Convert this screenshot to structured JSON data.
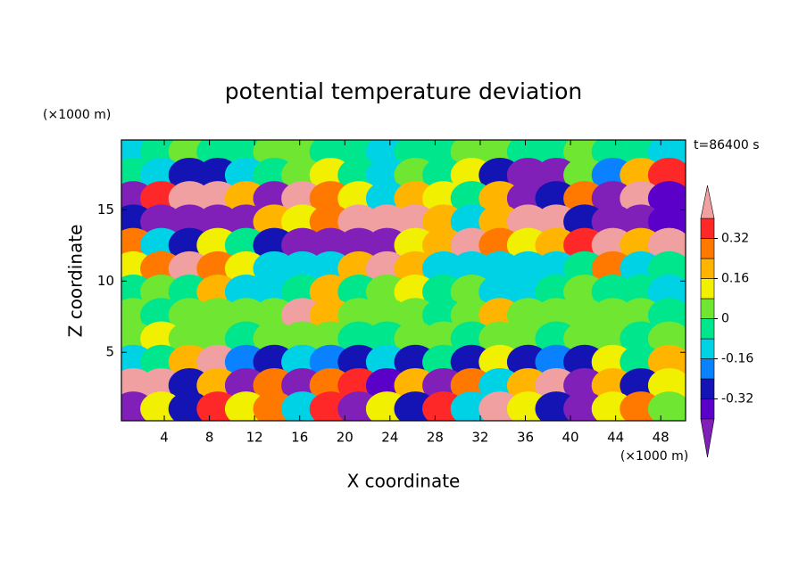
{
  "chart_data": {
    "type": "contour",
    "title": "potential temperature deviation",
    "x_label": "X coordinate",
    "y_label": "Z coordinate",
    "x_unit": "(×1000 m)",
    "y_unit": "(×1000 m)",
    "time_label": "t=86400 s",
    "xlim": [
      0.2,
      50.2
    ],
    "xticks": [
      4,
      8,
      12,
      16,
      20,
      24,
      28,
      32,
      36,
      40,
      44,
      48
    ],
    "ylim": [
      0.2,
      19.9
    ],
    "yticks": [
      5,
      10,
      15
    ],
    "colorbar": {
      "lim": [
        -0.4,
        0.4
      ],
      "ticks": [
        -0.32,
        -0.16,
        0,
        0.16,
        0.32
      ],
      "colors": [
        "#8020b8",
        "#5a00c8",
        "#1414b4",
        "#0a82ff",
        "#00d2e6",
        "#00e68c",
        "#6ee632",
        "#f0f000",
        "#ffb400",
        "#ff7800",
        "#ff2828",
        "#f0a0a0"
      ]
    },
    "field": {
      "x": [
        1.25,
        3.75,
        6.25,
        8.75,
        11.25,
        13.75,
        16.25,
        18.75,
        21.25,
        23.75,
        26.25,
        28.75,
        31.25,
        33.75,
        36.25,
        38.75,
        41.25,
        43.75,
        46.25,
        48.75
      ],
      "z": [
        19.08,
        17.44,
        15.8,
        14.16,
        12.52,
        10.88,
        9.24,
        7.6,
        5.96,
        4.32,
        2.68,
        1.04
      ],
      "values": [
        [
          -0.1,
          -0.05,
          0.03,
          -0.05,
          -0.05,
          0.03,
          0.03,
          -0.05,
          -0.05,
          -0.1,
          -0.05,
          -0.05,
          0.03,
          0.03,
          -0.05,
          -0.05,
          0.03,
          -0.05,
          -0.05,
          -0.1
        ],
        [
          -0.05,
          -0.12,
          -0.3,
          -0.3,
          -0.1,
          -0.05,
          0.03,
          0.1,
          -0.05,
          -0.1,
          0.03,
          -0.05,
          0.1,
          -0.3,
          -0.45,
          -0.45,
          0.03,
          -0.2,
          0.2,
          0.35
        ],
        [
          -0.45,
          0.35,
          0.45,
          0.45,
          0.2,
          -0.45,
          0.45,
          0.3,
          0.1,
          -0.1,
          0.2,
          0.1,
          -0.05,
          0.2,
          -0.45,
          -0.3,
          0.3,
          -0.45,
          0.45,
          -0.35
        ],
        [
          -0.3,
          -0.45,
          -0.45,
          -0.45,
          -0.45,
          0.2,
          0.1,
          0.3,
          0.45,
          0.45,
          0.45,
          0.2,
          -0.1,
          0.2,
          0.45,
          0.4,
          -0.3,
          -0.45,
          -0.45,
          -0.35
        ],
        [
          0.3,
          -0.1,
          -0.3,
          0.1,
          -0.05,
          -0.3,
          -0.45,
          -0.45,
          -0.45,
          -0.45,
          0.1,
          0.2,
          0.45,
          0.3,
          0.1,
          0.2,
          0.35,
          0.45,
          0.2,
          0.45
        ],
        [
          0.1,
          0.3,
          0.45,
          0.3,
          0.1,
          -0.1,
          -0.15,
          -0.1,
          0.2,
          0.45,
          0.2,
          -0.1,
          -0.1,
          -0.1,
          -0.1,
          -0.1,
          -0.05,
          0.3,
          -0.1,
          -0.05
        ],
        [
          -0.05,
          0.03,
          -0.05,
          0.2,
          -0.1,
          -0.1,
          -0.05,
          0.2,
          -0.05,
          0.03,
          0.1,
          -0.05,
          0.03,
          -0.1,
          -0.1,
          -0.05,
          0.03,
          -0.05,
          -0.05,
          -0.1
        ],
        [
          0.03,
          -0.05,
          0.03,
          0.03,
          0.03,
          0.03,
          0.45,
          0.2,
          0.03,
          0.03,
          0.03,
          -0.05,
          0.03,
          0.2,
          0.03,
          0.03,
          0.03,
          0.03,
          0.03,
          -0.05
        ],
        [
          0.03,
          0.1,
          0.03,
          0.03,
          -0.05,
          0.03,
          0.03,
          0.03,
          -0.05,
          -0.05,
          0.03,
          0.03,
          -0.05,
          0.03,
          0.03,
          -0.05,
          0.03,
          0.03,
          -0.05,
          0.03
        ],
        [
          -0.1,
          -0.05,
          0.2,
          0.45,
          -0.2,
          -0.3,
          -0.1,
          -0.2,
          -0.3,
          -0.1,
          -0.3,
          -0.05,
          -0.3,
          0.1,
          -0.3,
          -0.2,
          -0.3,
          0.1,
          -0.05,
          0.2
        ],
        [
          0.45,
          0.45,
          -0.3,
          0.2,
          -0.45,
          0.3,
          -0.45,
          0.3,
          0.35,
          -0.35,
          0.2,
          -0.45,
          0.3,
          -0.1,
          0.2,
          0.45,
          -0.45,
          0.2,
          -0.3,
          0.1
        ],
        [
          -0.45,
          0.1,
          -0.3,
          0.35,
          0.1,
          0.3,
          -0.1,
          0.35,
          -0.45,
          0.1,
          -0.3,
          0.35,
          -0.1,
          0.4,
          0.1,
          -0.3,
          -0.45,
          0.1,
          0.3,
          0.03
        ]
      ]
    }
  }
}
